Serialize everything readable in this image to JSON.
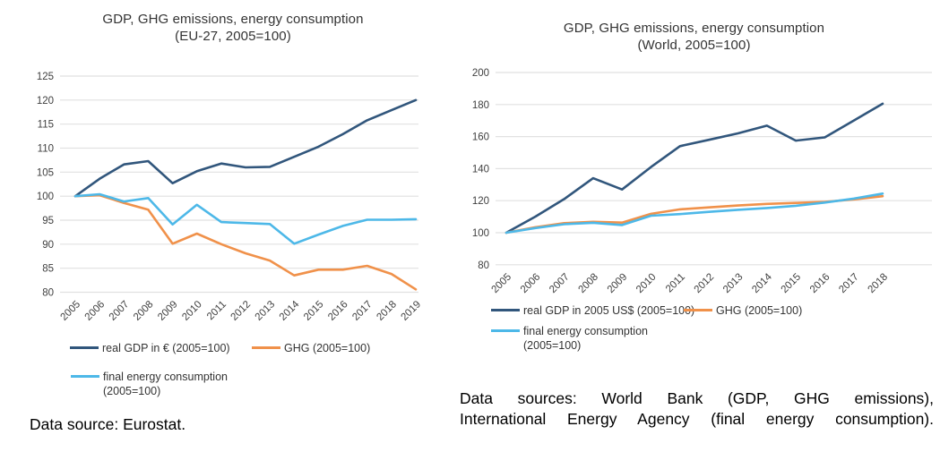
{
  "captions": {
    "left": "Data source: Eurostat.",
    "right_line1": "Data sources: World Bank (GDP, GHG emissions),",
    "right_line2": "International Energy Agency (final energy consumption)."
  },
  "colors": {
    "gdp_dark_blue": "#31567c",
    "ghg_orange": "#f0914a",
    "energy_light_blue": "#4db8e8",
    "gridline": "#e1e1e1",
    "axis_text": "#3f3f3f",
    "title_text": "#333333"
  },
  "chart_data": [
    {
      "type": "line",
      "title": "GDP, GHG emissions, energy consumption",
      "subtitle": "(EU-27, 2005=100)",
      "x": [
        "2005",
        "2006",
        "2007",
        "2008",
        "2009",
        "2010",
        "2011",
        "2012",
        "2013",
        "2014",
        "2015",
        "2016",
        "2017",
        "2018",
        "2019"
      ],
      "ylim": [
        80,
        125
      ],
      "yticks": [
        125,
        120,
        115,
        110,
        105,
        100,
        95,
        90,
        85,
        80
      ],
      "grid": true,
      "legend_position": "bottom",
      "series": [
        {
          "name": "real-gdp-eu",
          "legend_label": "real GDP in € (2005=100)",
          "color": "#31567c",
          "values": [
            100,
            103.6,
            106.6,
            107.3,
            102.7,
            105.2,
            106.8,
            106.0,
            106.1,
            108.2,
            110.3,
            112.9,
            115.8,
            117.9,
            120.0
          ]
        },
        {
          "name": "ghg-eu",
          "legend_label": "GHG (2005=100)",
          "color": "#f0914a",
          "values": [
            100,
            100.2,
            98.6,
            97.2,
            90.1,
            92.2,
            90.0,
            88.1,
            86.6,
            83.5,
            84.7,
            84.7,
            85.5,
            83.8,
            80.6
          ]
        },
        {
          "name": "final-energy-eu",
          "legend_label": "final energy consumption (2005=100)",
          "color": "#4db8e8",
          "values": [
            100,
            100.4,
            98.9,
            99.6,
            94.1,
            98.2,
            94.6,
            94.4,
            94.2,
            90.1,
            92.0,
            93.8,
            95.1,
            95.1,
            95.2
          ]
        }
      ]
    },
    {
      "type": "line",
      "title": "GDP, GHG emissions, energy consumption",
      "subtitle": "(World, 2005=100)",
      "x": [
        "2005",
        "2006",
        "2007",
        "2008",
        "2009",
        "2010",
        "2011",
        "2012",
        "2013",
        "2014",
        "2015",
        "2016",
        "2017",
        "2018"
      ],
      "ylim": [
        80,
        200
      ],
      "yticks": [
        200,
        180,
        160,
        140,
        120,
        100,
        80
      ],
      "grid": true,
      "legend_position": "bottom",
      "series": [
        {
          "name": "real-gdp-world",
          "legend_label": "real GDP in 2005 US$ (2005=100)",
          "color": "#31567c",
          "values": [
            100,
            110,
            121,
            134,
            127,
            141,
            154,
            158,
            162,
            166.8,
            157.5,
            159.5,
            170,
            180.5
          ]
        },
        {
          "name": "ghg-world",
          "legend_label": "GHG (2005=100)",
          "color": "#f0914a",
          "values": [
            100,
            103.4,
            106.0,
            106.8,
            106.3,
            111.8,
            114.6,
            115.8,
            117.0,
            118.0,
            118.6,
            119.2,
            120.8,
            122.8
          ]
        },
        {
          "name": "final-energy-world",
          "legend_label": "final energy consumption (2005=100)",
          "color": "#4db8e8",
          "values": [
            100,
            102.9,
            105.3,
            106.2,
            104.8,
            110.6,
            111.6,
            113.0,
            114.3,
            115.4,
            116.8,
            118.8,
            121.3,
            124.4
          ]
        }
      ]
    }
  ]
}
